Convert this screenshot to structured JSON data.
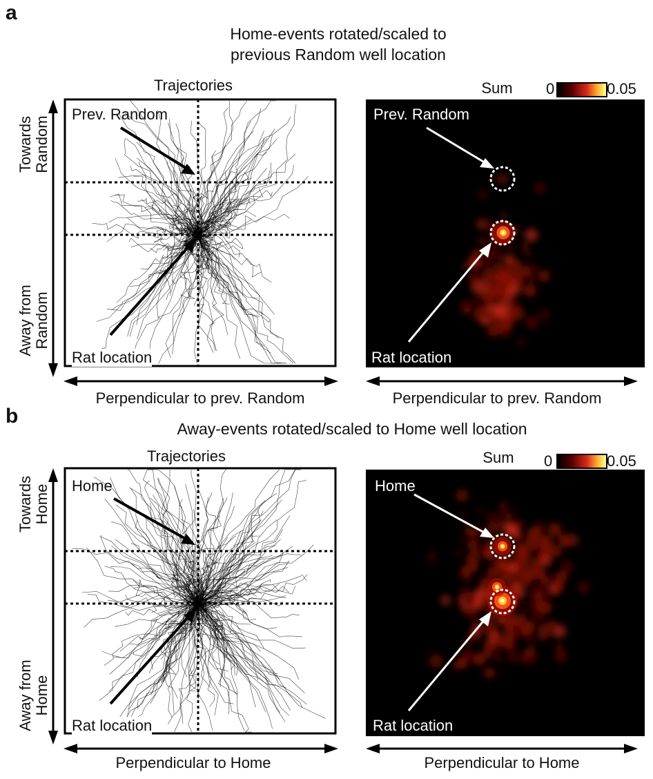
{
  "panel_a": {
    "letter": "a",
    "title_line1": "Home-events rotated/scaled to",
    "title_line2": "previous Random well location",
    "left_title": "Trajectories",
    "right_title": "Sum",
    "y_top": "Towards Random",
    "y_top_l1": "Towards",
    "y_top_l2": "Random",
    "y_bottom_l1": "Away from",
    "y_bottom_l2": "Random",
    "x_label_left": "Perpendicular to prev. Random",
    "x_label_right": "Perpendicular to prev. Random",
    "goal_label": "Prev. Random",
    "rat_label": "Rat location",
    "colorbar_min": "0",
    "colorbar_max": "0.05"
  },
  "panel_b": {
    "letter": "b",
    "title": "Away-events rotated/scaled to Home well location",
    "left_title": "Trajectories",
    "right_title": "Sum",
    "y_top_l1": "Towards",
    "y_top_l2": "Home",
    "y_bottom_l1": "Away from",
    "y_bottom_l2": "Home",
    "x_label_left": "Perpendicular to Home",
    "x_label_right": "Perpendicular to Home",
    "goal_label": "Home",
    "rat_label": "Rat location",
    "colorbar_min": "0",
    "colorbar_max": "0.05"
  },
  "colors": {
    "heatmap_bg": "#000000",
    "heat_low": "#6a0000",
    "heat_mid": "#e0301a",
    "heat_high": "#ffe060",
    "line": "#000000",
    "arrow_white": "#ffffff"
  }
}
